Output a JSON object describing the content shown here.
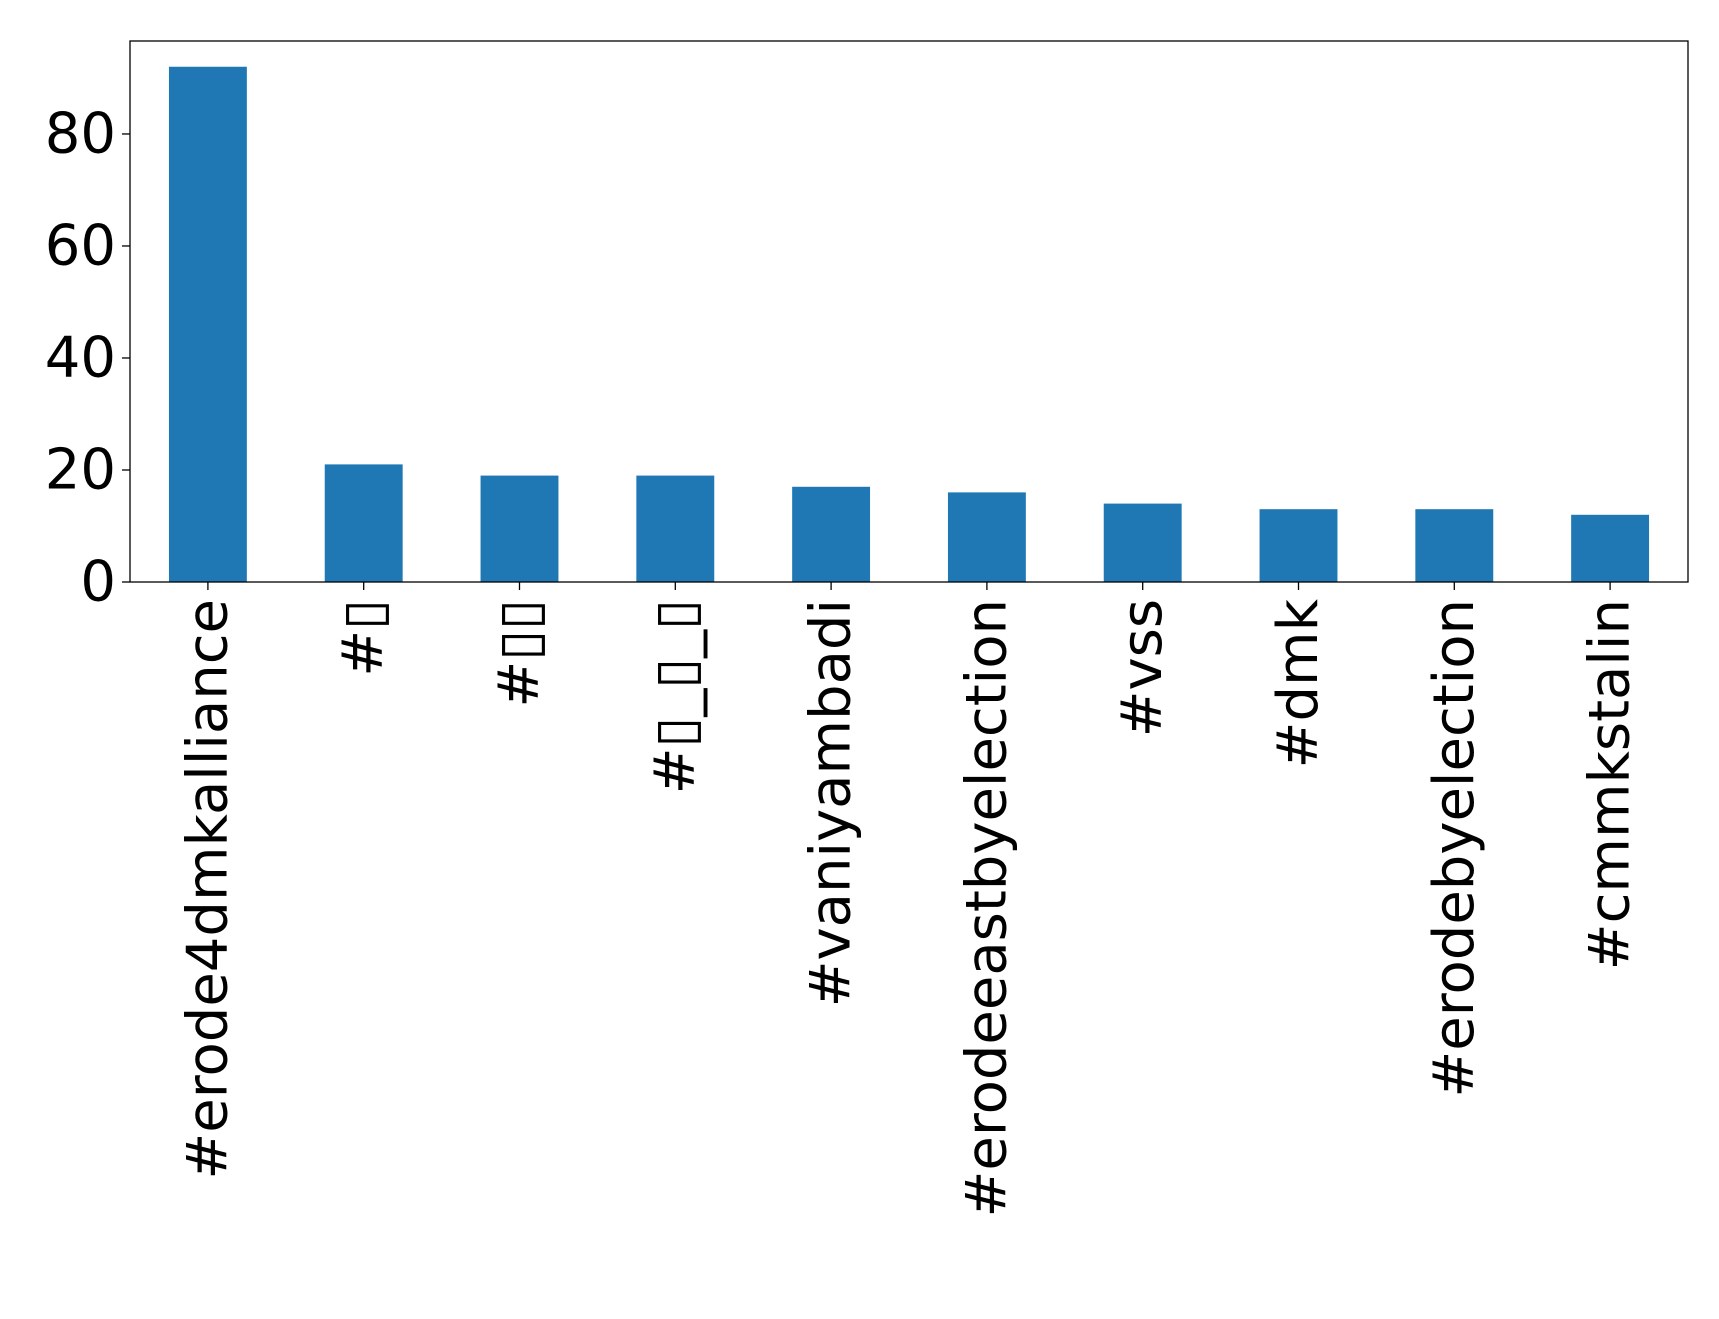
{
  "chart_data": {
    "type": "bar",
    "title": "",
    "xlabel": "",
    "ylabel": "",
    "categories": [
      "#erode4dmkalliance",
      "#▯",
      "#▯▯",
      "#▯_▯_▯",
      "#vaniyambadi",
      "#erodeeastbyelection",
      "#vss",
      "#dmk",
      "#erodebyelection",
      "#cmmkstalin"
    ],
    "values": [
      92,
      21,
      19,
      19,
      17,
      16,
      14,
      13,
      13,
      12
    ],
    "ylim": [
      0,
      96.6
    ],
    "yticks": [
      0,
      20,
      40,
      60,
      80
    ],
    "grid": false,
    "bar_color": "#1f77b4"
  }
}
